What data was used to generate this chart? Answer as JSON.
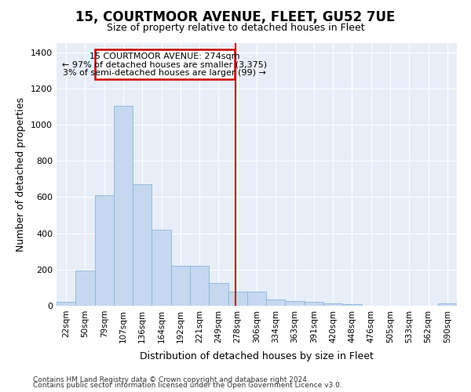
{
  "title": "15, COURTMOOR AVENUE, FLEET, GU52 7UE",
  "subtitle": "Size of property relative to detached houses in Fleet",
  "xlabel": "Distribution of detached houses by size in Fleet",
  "ylabel": "Number of detached properties",
  "bar_color": "#c5d8f0",
  "bar_edge_color": "#8ab4d8",
  "background_color": "#e8eef8",
  "grid_color": "#ffffff",
  "fig_bg_color": "#ffffff",
  "categories": [
    "22sqm",
    "50sqm",
    "79sqm",
    "107sqm",
    "136sqm",
    "164sqm",
    "192sqm",
    "221sqm",
    "249sqm",
    "278sqm",
    "306sqm",
    "334sqm",
    "363sqm",
    "391sqm",
    "420sqm",
    "448sqm",
    "476sqm",
    "505sqm",
    "533sqm",
    "562sqm",
    "590sqm"
  ],
  "values": [
    20,
    195,
    610,
    1105,
    670,
    420,
    220,
    220,
    125,
    80,
    80,
    35,
    28,
    20,
    12,
    8,
    0,
    0,
    0,
    0,
    12
  ],
  "ylim": [
    0,
    1450
  ],
  "yticks": [
    0,
    200,
    400,
    600,
    800,
    1000,
    1200,
    1400
  ],
  "annotation_line1": "15 COURTMOOR AVENUE: 274sqm",
  "annotation_line2": "← 97% of detached houses are smaller (3,375)",
  "annotation_line3": "3% of semi-detached houses are larger (99) →",
  "vline_color": "#cc0000",
  "annotation_box_color": "#cc0000",
  "vline_x_index": 9,
  "footer_line1": "Contains HM Land Registry data © Crown copyright and database right 2024.",
  "footer_line2": "Contains public sector information licensed under the Open Government Licence v3.0."
}
